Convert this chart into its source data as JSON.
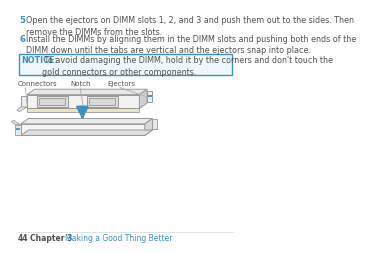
{
  "bg_color": "#ffffff",
  "text_color": "#505050",
  "blue_color": "#3a8fc4",
  "notice_border": "#3a8fc4",
  "notice_bg": "#f0f8fd",
  "step5_num": "5",
  "step5_text": "Open the ejectors on DIMM slots 1, 2, and 3 and push them out to the sides. Then\nremove the DIMMs from the slots.",
  "step6_num": "6",
  "step6_text": "Install the DIMMs by aligning them in the DIMM slots and pushing both ends of the\nDIMM down until the tabs are vertical and the ejectors snap into place.",
  "notice_label": "NOTICE:",
  "notice_text": " To avoid damaging the DIMM, hold it by the corners and don't touch the\ngold connectors or other components.",
  "label_connectors": "Connectors",
  "label_notch": "Notch",
  "label_ejectors": "Ejectors",
  "footer_page": "44",
  "footer_chapter": "Chapter 3",
  "footer_title": "  Making a Good Thing Better",
  "arrow_color": "#3a8fc4",
  "line_color": "#aaaaaa"
}
